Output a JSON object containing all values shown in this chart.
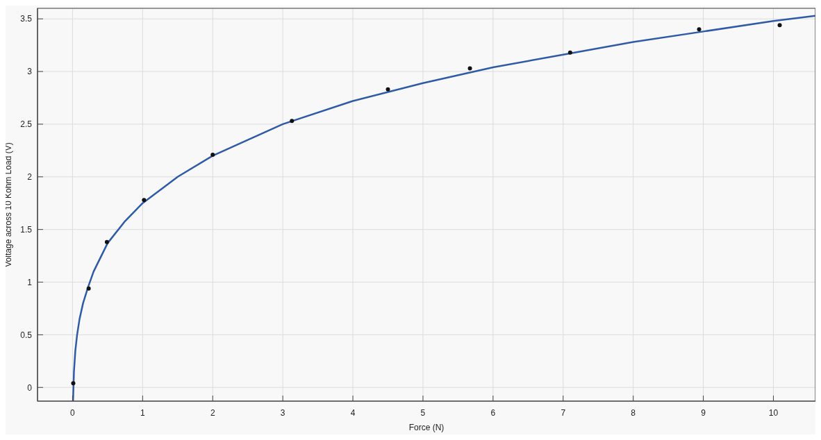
{
  "chart_data": {
    "type": "scatter",
    "xlabel": "Force (N)",
    "ylabel": "Voltage across 10 Kohm Load (V)",
    "xlim": [
      -0.5,
      10.6
    ],
    "ylim": [
      -0.13,
      3.6
    ],
    "xticks": [
      0,
      1,
      2,
      3,
      4,
      5,
      6,
      7,
      8,
      9,
      10
    ],
    "yticks": [
      0,
      0.5,
      1,
      1.5,
      2,
      2.5,
      3,
      3.5
    ],
    "grid": true,
    "series": [
      {
        "color": "#111111",
        "marker": "circle",
        "x": [
          0.01,
          0.23,
          0.49,
          1.02,
          2.0,
          3.13,
          4.5,
          5.67,
          7.1,
          8.94,
          10.09
        ],
        "values": [
          0.04,
          0.94,
          1.38,
          1.78,
          2.21,
          2.53,
          2.83,
          3.03,
          3.18,
          3.4,
          3.44
        ]
      },
      {
        "type": "line",
        "color": "#2e5aa8",
        "marker": "none",
        "line_style": "solid",
        "x": [
          0.007,
          0.02,
          0.04,
          0.065,
          0.1,
          0.15,
          0.22,
          0.3,
          0.5,
          0.75,
          1,
          1.5,
          2,
          3,
          4,
          5,
          6,
          7,
          8,
          9,
          10,
          10.6
        ],
        "values": [
          -0.13,
          0.15,
          0.35,
          0.5,
          0.65,
          0.8,
          0.95,
          1.1,
          1.37,
          1.58,
          1.75,
          2.0,
          2.2,
          2.5,
          2.72,
          2.89,
          3.04,
          3.16,
          3.28,
          3.38,
          3.48,
          3.53
        ]
      }
    ]
  }
}
